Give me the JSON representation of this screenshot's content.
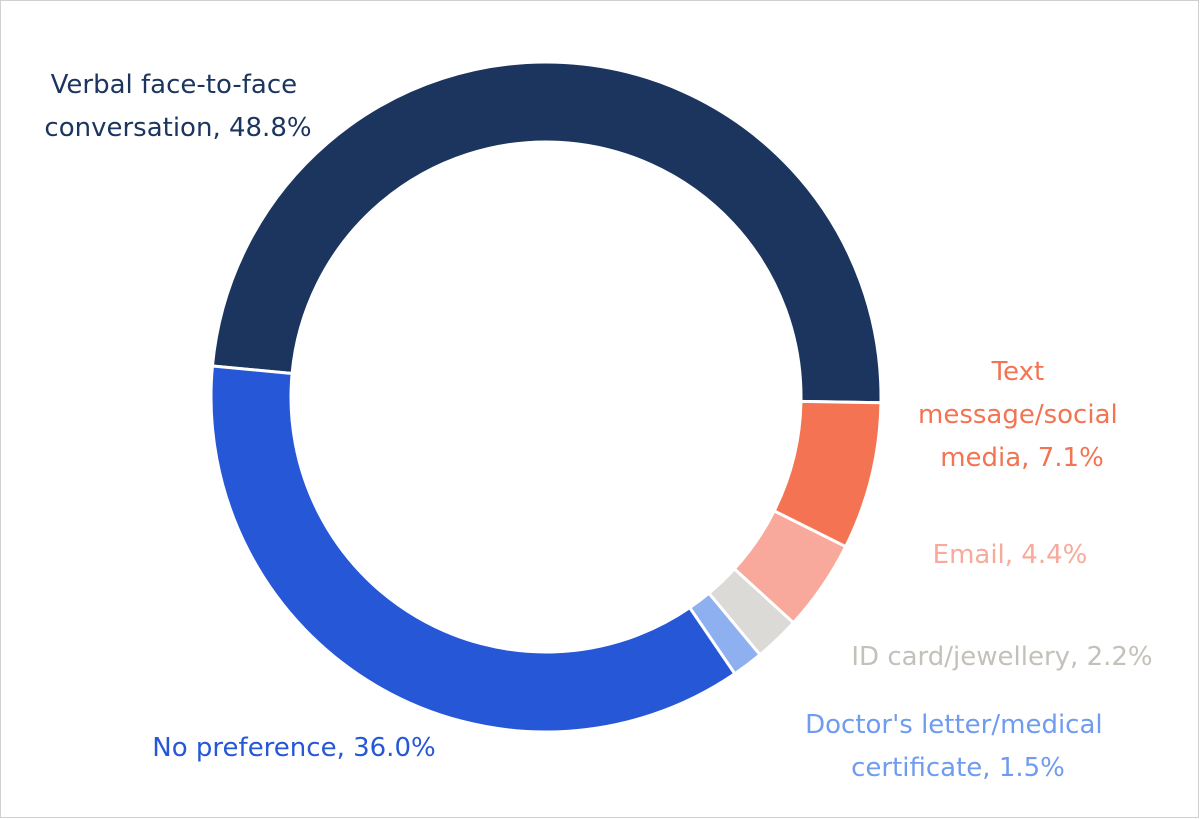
{
  "chart_data": {
    "type": "donut",
    "values": [
      48.8,
      7.1,
      4.4,
      2.2,
      1.5,
      36.0
    ],
    "value_labels": [
      "Verbal face-to-face conversation, 48.8%",
      "Text message/social media, 7.1%",
      "Email, 4.4%",
      "ID card/jewellery, 2.2%",
      "Doctor's letter/medical certificate, 1.5%",
      "No preference, 36.0%"
    ],
    "colors": [
      "#1c355e",
      "#f37352",
      "#f9a99b",
      "#dcdad6",
      "#8fb0f0",
      "#2557d6"
    ]
  }
}
